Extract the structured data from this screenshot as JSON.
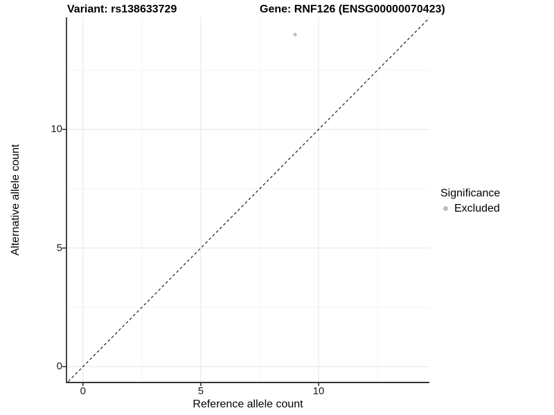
{
  "chart_data": {
    "type": "scatter",
    "titles": {
      "left": "Variant: rs138633729",
      "right": "Gene: RNF126 (ENSG00000070423)"
    },
    "xlabel": "Reference allele count",
    "ylabel": "Alternative allele count",
    "xlim": [
      -0.7,
      14.7
    ],
    "ylim": [
      -0.67,
      14.73
    ],
    "xticks": [
      0,
      5,
      10
    ],
    "yticks": [
      0,
      5,
      10
    ],
    "xticks_minor": [
      2.5,
      7.5,
      12.5
    ],
    "yticks_minor": [
      2.5,
      7.5,
      12.5
    ],
    "grid": {
      "major": true,
      "minor": true,
      "top_border": false,
      "right_border": false
    },
    "points": [
      {
        "x": 9,
        "y": 14,
        "significance": "Excluded"
      }
    ],
    "identity_line": {
      "slope": 1,
      "intercept": 0,
      "style": "dashed",
      "color": "#1a1a1a"
    },
    "legend": {
      "position": "right",
      "title": "Significance",
      "items": [
        {
          "label": "Excluded",
          "color": "#bdbdbd"
        }
      ]
    },
    "colors": {
      "background": "#ffffff",
      "point": "#c0c0c0",
      "grid_major": "#ebebeb",
      "grid_minor": "#f5f5f5",
      "axis_line": "#333333",
      "tick_mark": "#333333",
      "text": "#000000"
    }
  }
}
